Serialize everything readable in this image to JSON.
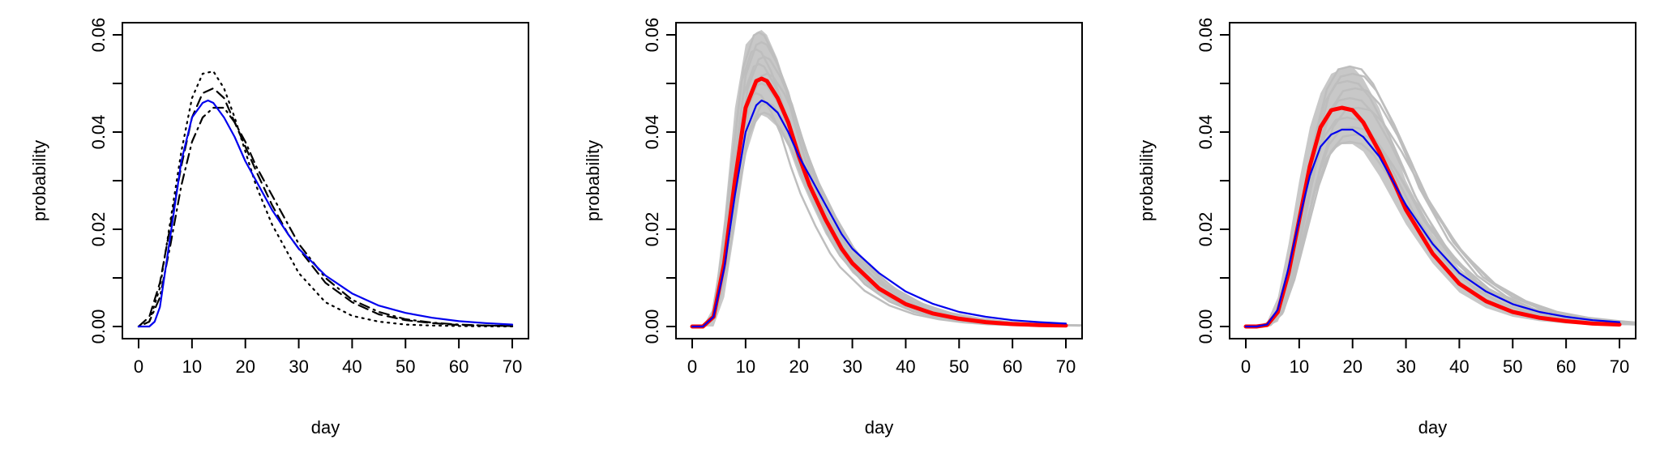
{
  "chart_data": [
    {
      "type": "line",
      "xlabel": "day",
      "ylabel": "probability",
      "xlim": [
        0,
        70
      ],
      "ylim": [
        0,
        0.06
      ],
      "xticks": [
        0,
        10,
        20,
        30,
        40,
        50,
        60,
        70
      ],
      "yticks": [
        0.0,
        0.02,
        0.04,
        0.06
      ],
      "xtick_labels": [
        "0",
        "10",
        "20",
        "30",
        "40",
        "50",
        "60",
        "70"
      ],
      "ytick_labels": [
        "0.00",
        "0.02",
        "0.04",
        "0.06"
      ],
      "grid": false,
      "series": [
        {
          "style": "dotted",
          "color": "#000000",
          "x": [
            0,
            2,
            4,
            6,
            8,
            10,
            12,
            14,
            16,
            18,
            20,
            22,
            25,
            28,
            30,
            35,
            40,
            45,
            50,
            55,
            60,
            65,
            70
          ],
          "values": [
            0,
            0.001,
            0.008,
            0.022,
            0.036,
            0.047,
            0.052,
            0.0525,
            0.049,
            0.043,
            0.036,
            0.029,
            0.021,
            0.015,
            0.011,
            0.005,
            0.0022,
            0.001,
            0.0004,
            0.0002,
            0.0001,
            3e-05,
            1e-05
          ]
        },
        {
          "style": "dashed",
          "color": "#000000",
          "x": [
            0,
            2,
            4,
            6,
            8,
            10,
            12,
            14,
            16,
            18,
            20,
            22,
            25,
            28,
            30,
            35,
            40,
            45,
            50,
            55,
            60,
            65,
            70
          ],
          "values": [
            0,
            0.002,
            0.009,
            0.021,
            0.033,
            0.043,
            0.048,
            0.049,
            0.047,
            0.042,
            0.037,
            0.032,
            0.025,
            0.019,
            0.016,
            0.009,
            0.005,
            0.0025,
            0.0013,
            0.0007,
            0.0003,
            0.0002,
            0.0001
          ]
        },
        {
          "style": "dotdash",
          "color": "#000000",
          "x": [
            0,
            2,
            4,
            6,
            8,
            10,
            12,
            14,
            16,
            18,
            20,
            22,
            25,
            28,
            30,
            35,
            40,
            45,
            50,
            55,
            60,
            65,
            70
          ],
          "values": [
            0,
            0.001,
            0.006,
            0.017,
            0.029,
            0.038,
            0.043,
            0.045,
            0.045,
            0.042,
            0.038,
            0.033,
            0.027,
            0.021,
            0.017,
            0.01,
            0.0055,
            0.003,
            0.0015,
            0.0008,
            0.0004,
            0.0002,
            0.0001
          ]
        },
        {
          "style": "solid",
          "color": "#0000ee",
          "x": [
            0,
            2,
            3,
            4,
            6,
            8,
            10,
            12,
            13,
            14,
            16,
            18,
            20,
            22,
            25,
            28,
            30,
            35,
            40,
            45,
            50,
            55,
            60,
            65,
            70
          ],
          "values": [
            0,
            0.0,
            0.001,
            0.004,
            0.019,
            0.034,
            0.043,
            0.046,
            0.0465,
            0.046,
            0.043,
            0.039,
            0.034,
            0.03,
            0.024,
            0.019,
            0.016,
            0.0105,
            0.0068,
            0.0043,
            0.0028,
            0.0018,
            0.0011,
            0.0007,
            0.0004
          ]
        }
      ]
    },
    {
      "type": "line",
      "xlabel": "day",
      "ylabel": "probability",
      "xlim": [
        0,
        70
      ],
      "ylim": [
        0,
        0.06
      ],
      "xticks": [
        0,
        10,
        20,
        30,
        40,
        50,
        60,
        70
      ],
      "yticks": [
        0.0,
        0.02,
        0.04,
        0.06
      ],
      "xtick_labels": [
        "0",
        "10",
        "20",
        "30",
        "40",
        "50",
        "60",
        "70"
      ],
      "ytick_labels": [
        "0.00",
        "0.02",
        "0.04",
        "0.06"
      ],
      "grid": false,
      "ensemble": {
        "color": "#bebebe",
        "x": [
          0,
          2,
          4,
          6,
          8,
          10,
          12,
          13,
          14,
          16,
          18,
          20,
          22,
          25,
          28,
          30,
          35,
          40,
          45,
          50,
          55,
          60,
          65,
          70
        ],
        "upper": [
          0,
          0.0,
          0.004,
          0.022,
          0.045,
          0.058,
          0.0605,
          0.061,
          0.06,
          0.055,
          0.048,
          0.04,
          0.033,
          0.025,
          0.019,
          0.016,
          0.0105,
          0.0065,
          0.004,
          0.0025,
          0.0016,
          0.001,
          0.0006,
          0.0004
        ],
        "lower": [
          0,
          0.0,
          0.0,
          0.006,
          0.02,
          0.035,
          0.042,
          0.0435,
          0.043,
          0.041,
          0.037,
          0.031,
          0.026,
          0.019,
          0.014,
          0.011,
          0.0065,
          0.0035,
          0.002,
          0.001,
          0.0005,
          0.0003,
          0.0001,
          0.0001
        ],
        "curves": [
          {
            "peak_x": 12.5,
            "peak_y": 0.0605
          },
          {
            "peak_x": 13,
            "peak_y": 0.0585
          },
          {
            "peak_x": 12,
            "peak_y": 0.057
          },
          {
            "peak_x": 13.5,
            "peak_y": 0.0555
          },
          {
            "peak_x": 12.5,
            "peak_y": 0.054
          },
          {
            "peak_x": 14,
            "peak_y": 0.052
          },
          {
            "peak_x": 13,
            "peak_y": 0.05
          },
          {
            "peak_x": 12,
            "peak_y": 0.048
          },
          {
            "peak_x": 14,
            "peak_y": 0.046
          },
          {
            "peak_x": 13.5,
            "peak_y": 0.044
          }
        ]
      },
      "series": [
        {
          "style": "solid",
          "color": "#ff0000",
          "width": "thick",
          "x": [
            0,
            2,
            4,
            6,
            8,
            10,
            12,
            13,
            14,
            16,
            18,
            20,
            22,
            25,
            28,
            30,
            35,
            40,
            45,
            50,
            55,
            60,
            65,
            70
          ],
          "values": [
            0,
            0.0,
            0.002,
            0.013,
            0.03,
            0.045,
            0.0505,
            0.051,
            0.0505,
            0.047,
            0.042,
            0.035,
            0.029,
            0.022,
            0.016,
            0.013,
            0.0078,
            0.0046,
            0.0027,
            0.0016,
            0.0009,
            0.0005,
            0.0003,
            0.0002
          ]
        },
        {
          "style": "solid",
          "color": "#0000ee",
          "x": [
            0,
            2,
            4,
            6,
            8,
            10,
            12,
            13,
            14,
            16,
            18,
            20,
            22,
            25,
            28,
            30,
            35,
            40,
            45,
            50,
            55,
            60,
            65,
            70
          ],
          "values": [
            0,
            0.0,
            0.002,
            0.012,
            0.027,
            0.04,
            0.0455,
            0.0465,
            0.046,
            0.044,
            0.04,
            0.035,
            0.031,
            0.025,
            0.019,
            0.016,
            0.011,
            0.0072,
            0.0047,
            0.003,
            0.002,
            0.0013,
            0.0009,
            0.0006
          ]
        }
      ]
    },
    {
      "type": "line",
      "xlabel": "day",
      "ylabel": "probability",
      "xlim": [
        0,
        70
      ],
      "ylim": [
        0,
        0.06
      ],
      "xticks": [
        0,
        10,
        20,
        30,
        40,
        50,
        60,
        70
      ],
      "yticks": [
        0.0,
        0.02,
        0.04,
        0.06
      ],
      "xtick_labels": [
        "0",
        "10",
        "20",
        "30",
        "40",
        "50",
        "60",
        "70"
      ],
      "ytick_labels": [
        "0.00",
        "0.02",
        "0.04",
        "0.06"
      ],
      "grid": false,
      "ensemble": {
        "color": "#bebebe",
        "x": [
          0,
          2,
          4,
          6,
          8,
          10,
          12,
          14,
          16,
          18,
          20,
          22,
          25,
          28,
          30,
          35,
          40,
          45,
          50,
          55,
          60,
          65,
          70
        ],
        "upper": [
          0,
          0.0,
          0.001,
          0.006,
          0.017,
          0.03,
          0.041,
          0.048,
          0.052,
          0.053,
          0.0535,
          0.051,
          0.045,
          0.036,
          0.03,
          0.019,
          0.012,
          0.0075,
          0.0048,
          0.003,
          0.0019,
          0.0012,
          0.0008
        ],
        "lower": [
          0,
          0.0,
          0.0,
          0.001,
          0.006,
          0.015,
          0.025,
          0.032,
          0.036,
          0.0375,
          0.0375,
          0.036,
          0.031,
          0.025,
          0.021,
          0.013,
          0.007,
          0.0038,
          0.002,
          0.0011,
          0.0006,
          0.0003,
          0.0002
        ],
        "curves": [
          {
            "peak_x": 19.5,
            "peak_y": 0.0535
          },
          {
            "peak_x": 20,
            "peak_y": 0.052
          },
          {
            "peak_x": 19,
            "peak_y": 0.0505
          },
          {
            "peak_x": 20.5,
            "peak_y": 0.049
          },
          {
            "peak_x": 19.5,
            "peak_y": 0.047
          },
          {
            "peak_x": 21,
            "peak_y": 0.045
          },
          {
            "peak_x": 19,
            "peak_y": 0.043
          },
          {
            "peak_x": 20,
            "peak_y": 0.041
          },
          {
            "peak_x": 20.5,
            "peak_y": 0.0395
          },
          {
            "peak_x": 19.5,
            "peak_y": 0.038
          }
        ]
      },
      "series": [
        {
          "style": "solid",
          "color": "#ff0000",
          "width": "thick",
          "x": [
            0,
            2,
            4,
            6,
            8,
            10,
            12,
            14,
            16,
            18,
            20,
            22,
            25,
            28,
            30,
            35,
            40,
            45,
            50,
            55,
            60,
            65,
            70
          ],
          "values": [
            0,
            0.0,
            0.0003,
            0.003,
            0.011,
            0.022,
            0.033,
            0.041,
            0.0445,
            0.045,
            0.0445,
            0.042,
            0.036,
            0.029,
            0.024,
            0.015,
            0.0088,
            0.0052,
            0.003,
            0.0018,
            0.0011,
            0.0006,
            0.0004
          ]
        },
        {
          "style": "solid",
          "color": "#0000ee",
          "x": [
            0,
            2,
            4,
            6,
            8,
            10,
            12,
            14,
            16,
            18,
            20,
            22,
            25,
            28,
            30,
            35,
            40,
            45,
            50,
            55,
            60,
            65,
            70
          ],
          "values": [
            0,
            0.0,
            0.0004,
            0.0035,
            0.012,
            0.022,
            0.031,
            0.037,
            0.0395,
            0.0405,
            0.0405,
            0.039,
            0.035,
            0.029,
            0.025,
            0.017,
            0.011,
            0.0072,
            0.0046,
            0.003,
            0.002,
            0.0013,
            0.0009
          ]
        }
      ]
    }
  ]
}
